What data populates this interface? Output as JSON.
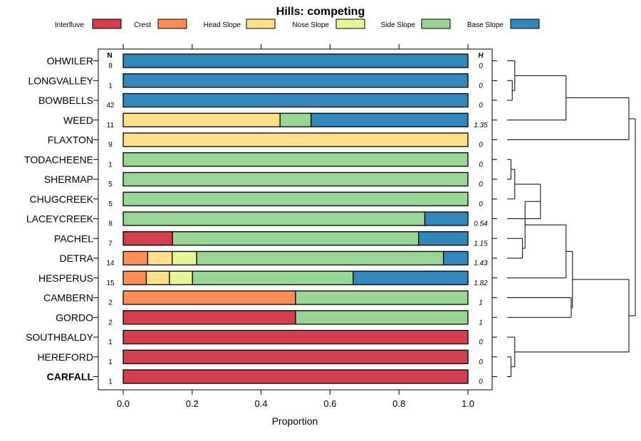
{
  "chart_data": {
    "type": "bar",
    "title": "Hills: competing",
    "xlabel": "Proportion",
    "ylabel": "",
    "xlim": [
      0,
      1
    ],
    "x_ticks": [
      0.0,
      0.2,
      0.4,
      0.6,
      0.8,
      1.0
    ],
    "x_tick_labels": [
      "0.0",
      "0.2",
      "0.4",
      "0.6",
      "0.8",
      "1.0"
    ],
    "n_header": "N",
    "h_header": "H",
    "legend": [
      {
        "name": "Interfluve",
        "color": "#d53e4f"
      },
      {
        "name": "Crest",
        "color": "#fc8d59"
      },
      {
        "name": "Head Slope",
        "color": "#fee08b"
      },
      {
        "name": "Nose Slope",
        "color": "#e6f598"
      },
      {
        "name": "Side Slope",
        "color": "#99d594"
      },
      {
        "name": "Base Slope",
        "color": "#3288bd"
      }
    ],
    "series_order": [
      "Interfluve",
      "Crest",
      "Head Slope",
      "Nose Slope",
      "Side Slope",
      "Base Slope"
    ],
    "rows": [
      {
        "name": "OHWILER",
        "n": "8",
        "h": "0",
        "bold": false,
        "values": [
          0,
          0,
          0,
          0,
          0,
          1
        ]
      },
      {
        "name": "LONGVALLEY",
        "n": "1",
        "h": "0",
        "bold": false,
        "values": [
          0,
          0,
          0,
          0,
          0,
          1
        ]
      },
      {
        "name": "BOWBELLS",
        "n": "42",
        "h": "0",
        "bold": false,
        "values": [
          0,
          0,
          0,
          0,
          0,
          1
        ]
      },
      {
        "name": "WEED",
        "n": "11",
        "h": "1.35",
        "bold": false,
        "values": [
          0,
          0,
          0.455,
          0,
          0.09,
          0.455
        ]
      },
      {
        "name": "FLAXTON",
        "n": "9",
        "h": "0",
        "bold": false,
        "values": [
          0,
          0,
          1,
          0,
          0,
          0
        ]
      },
      {
        "name": "TODACHEENE",
        "n": "1",
        "h": "0",
        "bold": false,
        "values": [
          0,
          0,
          0,
          0,
          1,
          0
        ]
      },
      {
        "name": "SHERMAP",
        "n": "5",
        "h": "0",
        "bold": false,
        "values": [
          0,
          0,
          0,
          0,
          1,
          0
        ]
      },
      {
        "name": "CHUGCREEK",
        "n": "5",
        "h": "0",
        "bold": false,
        "values": [
          0,
          0,
          0,
          0,
          1,
          0
        ]
      },
      {
        "name": "LACEYCREEK",
        "n": "8",
        "h": "0.54",
        "bold": false,
        "values": [
          0,
          0,
          0,
          0,
          0.875,
          0.125
        ]
      },
      {
        "name": "PACHEL",
        "n": "7",
        "h": "1.15",
        "bold": false,
        "values": [
          0.143,
          0,
          0,
          0,
          0.714,
          0.143
        ]
      },
      {
        "name": "DETRA",
        "n": "14",
        "h": "1.43",
        "bold": false,
        "values": [
          0,
          0.071,
          0.071,
          0.071,
          0.716,
          0.071
        ]
      },
      {
        "name": "HESPERUS",
        "n": "15",
        "h": "1.82",
        "bold": false,
        "values": [
          0,
          0.067,
          0.067,
          0.067,
          0.466,
          0.333
        ]
      },
      {
        "name": "CAMBERN",
        "n": "2",
        "h": "1",
        "bold": false,
        "values": [
          0,
          0.5,
          0,
          0,
          0.5,
          0
        ]
      },
      {
        "name": "GORDO",
        "n": "2",
        "h": "1",
        "bold": false,
        "values": [
          0.5,
          0,
          0,
          0,
          0.5,
          0
        ]
      },
      {
        "name": "SOUTHBALDY",
        "n": "1",
        "h": "0",
        "bold": false,
        "values": [
          1,
          0,
          0,
          0,
          0,
          0
        ]
      },
      {
        "name": "HEREFORD",
        "n": "1",
        "h": "0",
        "bold": false,
        "values": [
          1,
          0,
          0,
          0,
          0,
          0
        ]
      },
      {
        "name": "CARFALL",
        "n": "1",
        "h": "0",
        "bold": true,
        "values": [
          1,
          0,
          0,
          0,
          0,
          0
        ]
      }
    ],
    "dendrogram": {
      "leaves": [
        "OHWILER",
        "LONGVALLEY",
        "BOWBELLS",
        "WEED",
        "FLAXTON",
        "TODACHEENE",
        "SHERMAP",
        "CHUGCREEK",
        "LACEYCREEK",
        "PACHEL",
        "DETRA",
        "HESPERUS",
        "CAMBERN",
        "GORDO",
        "SOUTHBALDY",
        "HEREFORD",
        "CARFALL"
      ],
      "merges": [
        {
          "left": "LONGVALLEY",
          "right": "BOWBELLS",
          "height": 0.04
        },
        {
          "left": "OHWILER",
          "right": "c1",
          "height": 0.06
        },
        {
          "left": "c2",
          "right": "WEED",
          "height": 0.46
        },
        {
          "left": "c3",
          "right": "FLAXTON",
          "height": 0.95
        },
        {
          "left": "TODACHEENE",
          "right": "SHERMAP",
          "height": 0.03
        },
        {
          "left": "c5",
          "right": "CHUGCREEK",
          "height": 0.06
        },
        {
          "left": "c6",
          "right": "LACEYCREEK",
          "height": 0.26
        },
        {
          "left": "PACHEL",
          "right": "DETRA",
          "height": 0.12
        },
        {
          "left": "c7",
          "right": "c8",
          "height": 0.14
        },
        {
          "left": "c9",
          "right": "HESPERUS",
          "height": 0.46
        },
        {
          "left": "CAMBERN",
          "right": "GORDO",
          "height": 0.5
        },
        {
          "left": "c10",
          "right": "c11",
          "height": 0.51
        },
        {
          "left": "HEREFORD",
          "right": "CARFALL",
          "height": 0.03
        },
        {
          "left": "SOUTHBALDY",
          "right": "c13",
          "height": 0.06
        },
        {
          "left": "c12",
          "right": "c14",
          "height": 0.95
        },
        {
          "left": "c4",
          "right": "c15",
          "height": 1.0
        }
      ]
    }
  }
}
